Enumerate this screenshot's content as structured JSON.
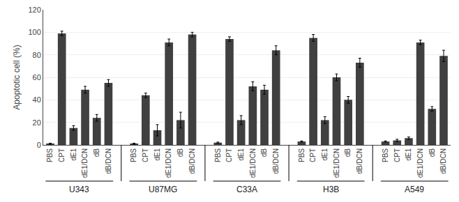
{
  "chart_data": {
    "type": "bar",
    "ylabel": "Apoptotic cell (%)",
    "categories": [
      "PBS",
      "CPT",
      "dE1",
      "dE1/DCN",
      "dB",
      "dB/DCN"
    ],
    "series": [
      {
        "name": "U343",
        "values": [
          1,
          99,
          15,
          49,
          24,
          55
        ],
        "errors": [
          0.5,
          2,
          2,
          3,
          3,
          3
        ]
      },
      {
        "name": "U87MG",
        "values": [
          1,
          44,
          13,
          91,
          22,
          98
        ],
        "errors": [
          0.5,
          2,
          5,
          3,
          7,
          2
        ]
      },
      {
        "name": "C33A",
        "values": [
          2,
          94,
          22,
          52,
          49,
          84
        ],
        "errors": [
          0.5,
          2,
          4,
          4,
          4,
          4
        ]
      },
      {
        "name": "H3B",
        "values": [
          3,
          95,
          22,
          60,
          40,
          73
        ],
        "errors": [
          0.5,
          3,
          3,
          3,
          3,
          4
        ]
      },
      {
        "name": "A549",
        "values": [
          3,
          4,
          6,
          91,
          32,
          79
        ],
        "errors": [
          0.5,
          1,
          1,
          2,
          2,
          5
        ]
      }
    ],
    "color": "#404040",
    "ylim": [
      0,
      120
    ],
    "yticks": [
      0,
      20,
      40,
      60,
      80,
      100,
      120
    ],
    "grid": true
  }
}
